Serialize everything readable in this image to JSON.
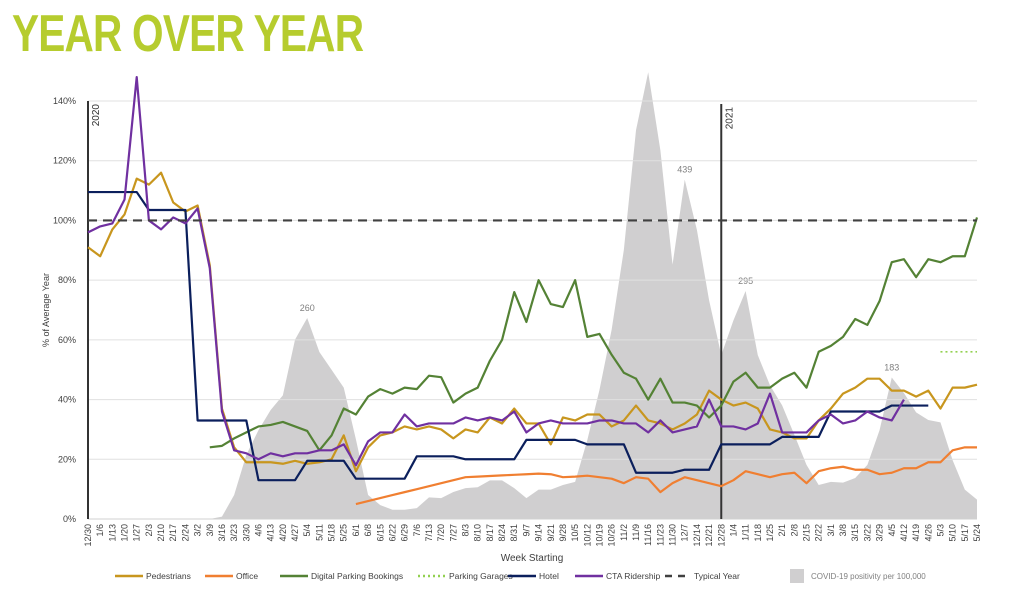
{
  "title": "YEAR OVER YEAR",
  "chart_data": {
    "type": "line",
    "title": "YEAR OVER YEAR",
    "xlabel": "Week Starting",
    "ylabel": "% of Average Year",
    "ylim": [
      0,
      140
    ],
    "yticks": [
      "0%",
      "20%",
      "40%",
      "60%",
      "80%",
      "100%",
      "120%",
      "140%"
    ],
    "grid": true,
    "legend_position": "bottom",
    "year_markers": [
      {
        "label": "2020",
        "at": "12/30"
      },
      {
        "label": "2021",
        "at": "12/28"
      }
    ],
    "categories": [
      "12/30",
      "1/6",
      "1/13",
      "1/20",
      "1/27",
      "2/3",
      "2/10",
      "2/17",
      "2/24",
      "3/2",
      "3/9",
      "3/16",
      "3/23",
      "3/30",
      "4/6",
      "4/13",
      "4/20",
      "4/27",
      "5/4",
      "5/11",
      "5/18",
      "5/25",
      "6/1",
      "6/8",
      "6/15",
      "6/22",
      "6/29",
      "7/6",
      "7/13",
      "7/20",
      "7/27",
      "8/3",
      "8/10",
      "8/17",
      "8/24",
      "8/31",
      "9/7",
      "9/14",
      "9/21",
      "9/28",
      "10/5",
      "10/12",
      "10/19",
      "10/26",
      "11/2",
      "11/9",
      "11/16",
      "11/23",
      "11/30",
      "12/7",
      "12/14",
      "12/21",
      "12/28",
      "1/4",
      "1/11",
      "1/18",
      "1/25",
      "2/1",
      "2/8",
      "2/15",
      "2/22",
      "3/1",
      "3/8",
      "3/15",
      "3/22",
      "3/29",
      "4/5",
      "4/12",
      "4/19",
      "4/26",
      "5/3",
      "5/10",
      "5/17",
      "5/24"
    ],
    "series": [
      {
        "name": "Pedestrians",
        "color": "#c8961e",
        "style": "solid",
        "values": [
          91,
          88,
          97,
          102,
          114,
          112,
          116,
          106,
          103,
          105,
          85,
          37,
          24,
          19,
          19,
          19,
          18.5,
          19.5,
          18.5,
          19,
          20,
          28,
          16,
          24,
          28,
          29,
          31,
          30,
          31,
          30,
          27,
          30,
          29,
          34,
          32,
          37,
          32,
          32,
          25,
          34,
          33,
          35,
          35,
          31,
          33,
          38,
          33,
          32,
          30,
          32,
          35,
          43,
          40,
          38,
          39,
          37,
          30,
          29,
          27,
          27,
          33,
          37,
          42,
          44,
          47,
          47,
          43,
          43,
          41,
          43,
          37,
          44,
          44,
          45
        ]
      },
      {
        "name": "Office",
        "color": "#f07f31",
        "style": "solid",
        "values": [
          null,
          null,
          null,
          null,
          null,
          null,
          null,
          null,
          null,
          null,
          null,
          null,
          null,
          null,
          null,
          null,
          null,
          null,
          null,
          null,
          null,
          null,
          5,
          6,
          7,
          8,
          9,
          10,
          11,
          12,
          13,
          14,
          14.2,
          14.4,
          14.6,
          14.8,
          15,
          15.2,
          15,
          14,
          14.2,
          14.5,
          14,
          13.5,
          12,
          14,
          13.5,
          9,
          12,
          14,
          13,
          12,
          11,
          13,
          16,
          15,
          14,
          15,
          15.5,
          12,
          16,
          17,
          17.5,
          16.5,
          16.5,
          15,
          15.5,
          17,
          17,
          19,
          19,
          23,
          24,
          24
        ]
      },
      {
        "name": "Digital Parking Bookings",
        "color": "#548235",
        "style": "solid",
        "values": [
          null,
          null,
          null,
          null,
          null,
          null,
          null,
          null,
          null,
          null,
          24,
          24.5,
          27,
          29,
          31,
          31.5,
          32.5,
          31,
          29.5,
          23,
          28,
          37,
          35,
          41,
          43.5,
          42,
          44,
          43.5,
          48,
          47.5,
          39,
          42,
          44,
          53,
          60,
          76,
          66,
          80,
          72,
          71,
          80,
          61,
          62,
          55,
          49,
          47,
          40,
          47,
          39,
          39,
          38,
          34,
          38,
          46,
          49,
          44,
          44,
          47,
          49,
          44,
          56,
          58,
          61,
          67,
          65,
          73,
          86,
          87,
          81,
          87,
          86,
          88,
          88,
          101
        ]
      },
      {
        "name": "Parking Garages",
        "color": "#92d050",
        "style": "dotted",
        "values": [
          null,
          null,
          null,
          null,
          null,
          null,
          null,
          null,
          null,
          null,
          null,
          null,
          null,
          null,
          null,
          null,
          null,
          null,
          null,
          null,
          null,
          null,
          null,
          null,
          null,
          null,
          null,
          null,
          null,
          null,
          null,
          null,
          null,
          null,
          null,
          null,
          null,
          null,
          null,
          null,
          null,
          null,
          null,
          null,
          null,
          null,
          null,
          null,
          null,
          null,
          null,
          null,
          null,
          null,
          null,
          null,
          null,
          null,
          null,
          null,
          null,
          null,
          null,
          null,
          null,
          null,
          null,
          null,
          null,
          null,
          56,
          56,
          56,
          56
        ]
      },
      {
        "name": "Hotel",
        "color": "#0b1f5c",
        "style": "solid",
        "values": [
          109.5,
          109.5,
          109.5,
          109.5,
          109.5,
          103.5,
          103.5,
          103.5,
          103.5,
          33,
          33,
          33,
          33,
          33,
          13,
          13,
          13,
          13,
          19.5,
          19.5,
          19.5,
          19.5,
          13.5,
          13.5,
          13.5,
          13.5,
          13.5,
          21,
          21,
          21,
          21,
          20,
          20,
          20,
          20,
          20,
          26.5,
          26.5,
          26.5,
          26.5,
          26.5,
          25,
          25,
          25,
          25,
          15.5,
          15.5,
          15.5,
          15.5,
          16.5,
          16.5,
          16.5,
          25,
          25,
          25,
          25,
          25,
          27.5,
          27.5,
          27.5,
          27.5,
          36,
          36,
          36,
          36,
          36,
          38,
          38,
          38,
          38,
          null,
          null,
          null,
          null
        ]
      },
      {
        "name": "CTA Ridership",
        "color": "#7030a0",
        "style": "solid",
        "values": [
          96,
          98,
          99,
          107,
          148,
          100,
          97,
          101,
          99,
          104,
          84,
          36,
          23,
          22,
          20,
          22,
          21,
          22,
          22,
          23,
          23,
          25,
          18,
          26,
          29,
          29,
          35,
          31,
          32,
          32,
          32,
          34,
          33,
          34,
          33,
          36,
          29,
          32,
          33,
          32,
          32,
          32,
          33,
          33,
          32,
          32,
          29,
          33,
          29,
          30,
          31,
          40,
          31,
          31,
          30,
          32,
          42,
          29,
          29,
          29,
          33,
          35,
          32,
          33,
          36,
          34,
          33,
          40,
          null,
          null,
          null,
          null,
          null,
          null
        ]
      },
      {
        "name": "Typical Year",
        "color": "#404040",
        "style": "dashed",
        "constant": 100
      }
    ],
    "area": {
      "name": "COVID-19 positivity per 100,000",
      "color": "#d0cfd0",
      "values": [
        0,
        0,
        0,
        0,
        0,
        0,
        0,
        0,
        0,
        0,
        0,
        3,
        31,
        83,
        115,
        141,
        160,
        232,
        260,
        216,
        193,
        170,
        103,
        31,
        18,
        12,
        12,
        14,
        28,
        27,
        35,
        40,
        41,
        50,
        50,
        40,
        27,
        38,
        38,
        44,
        48,
        102,
        167,
        245,
        348,
        503,
        578,
        477,
        329,
        439,
        374,
        283,
        212,
        257,
        295,
        212,
        173,
        147,
        109,
        70,
        44,
        48,
        47,
        53,
        70,
        115,
        183,
        163,
        138,
        128,
        125,
        76,
        38,
        25
      ],
      "labels": [
        {
          "at": "5/4",
          "text": "260"
        },
        {
          "at": "12/7",
          "text": "439"
        },
        {
          "at": "1/11",
          "text": "295"
        },
        {
          "at": "4/5",
          "text": "183"
        }
      ]
    }
  }
}
